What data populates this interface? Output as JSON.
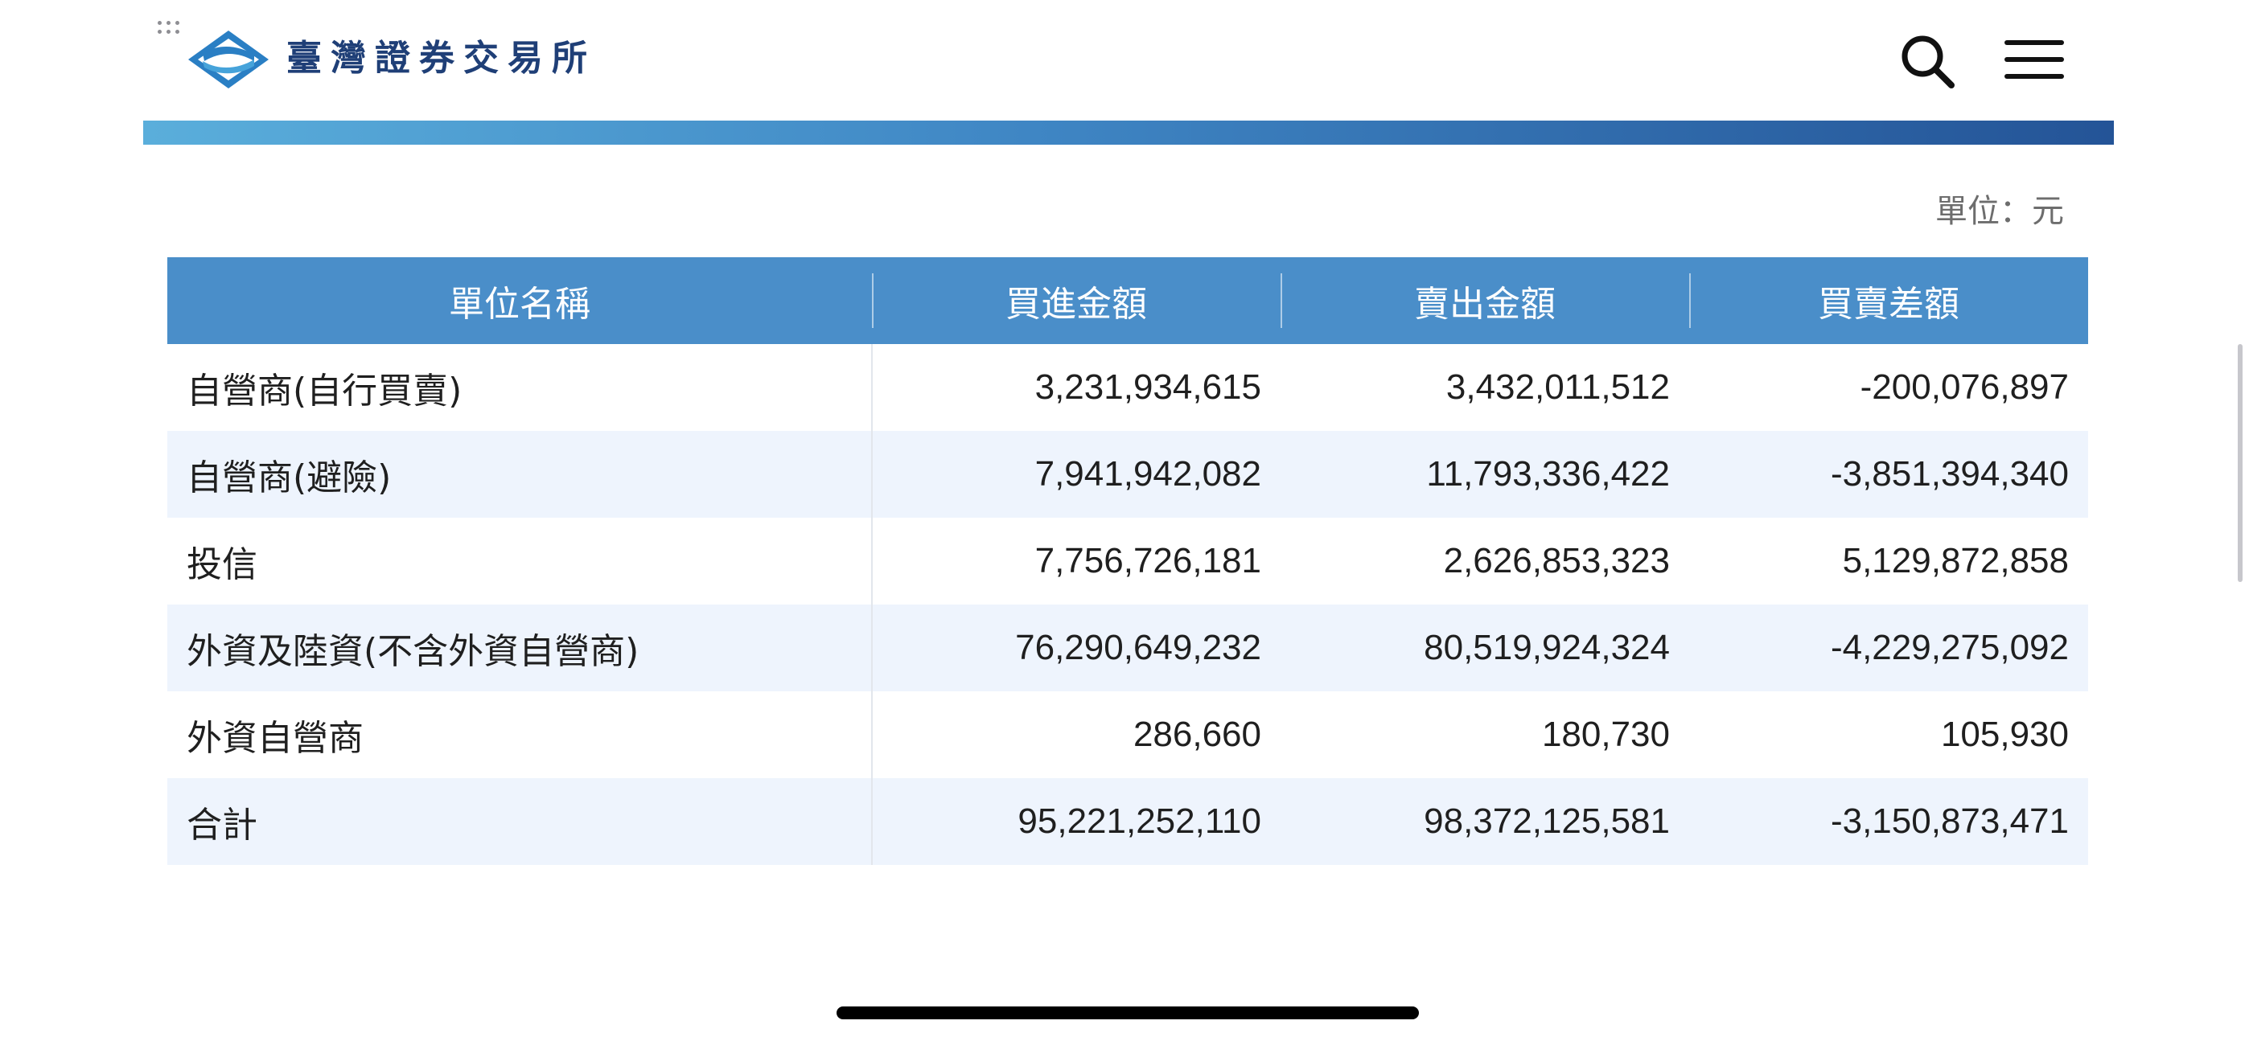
{
  "brand": {
    "name": "臺灣證券交易所",
    "accent": "#4a8ec9",
    "dark": "#1f3f77"
  },
  "icons": {
    "logo": "twse-logo-icon",
    "search": "search-icon",
    "menu": "hamburger-menu-icon"
  },
  "unit_note": "單位：元",
  "table": {
    "columns": [
      "單位名稱",
      "買進金額",
      "賣出金額",
      "買賣差額"
    ],
    "rows": [
      {
        "name": "自營商(自行買賣)",
        "buy": "3,231,934,615",
        "sell": "3,432,011,512",
        "diff": "-200,076,897"
      },
      {
        "name": "自營商(避險)",
        "buy": "7,941,942,082",
        "sell": "11,793,336,422",
        "diff": "-3,851,394,340"
      },
      {
        "name": "投信",
        "buy": "7,756,726,181",
        "sell": "2,626,853,323",
        "diff": "5,129,872,858"
      },
      {
        "name": "外資及陸資(不含外資自營商)",
        "buy": "76,290,649,232",
        "sell": "80,519,924,324",
        "diff": "-4,229,275,092"
      },
      {
        "name": "外資自營商",
        "buy": "286,660",
        "sell": "180,730",
        "diff": "105,930"
      },
      {
        "name": "合計",
        "buy": "95,221,252,110",
        "sell": "98,372,125,581",
        "diff": "-3,150,873,471"
      }
    ]
  }
}
